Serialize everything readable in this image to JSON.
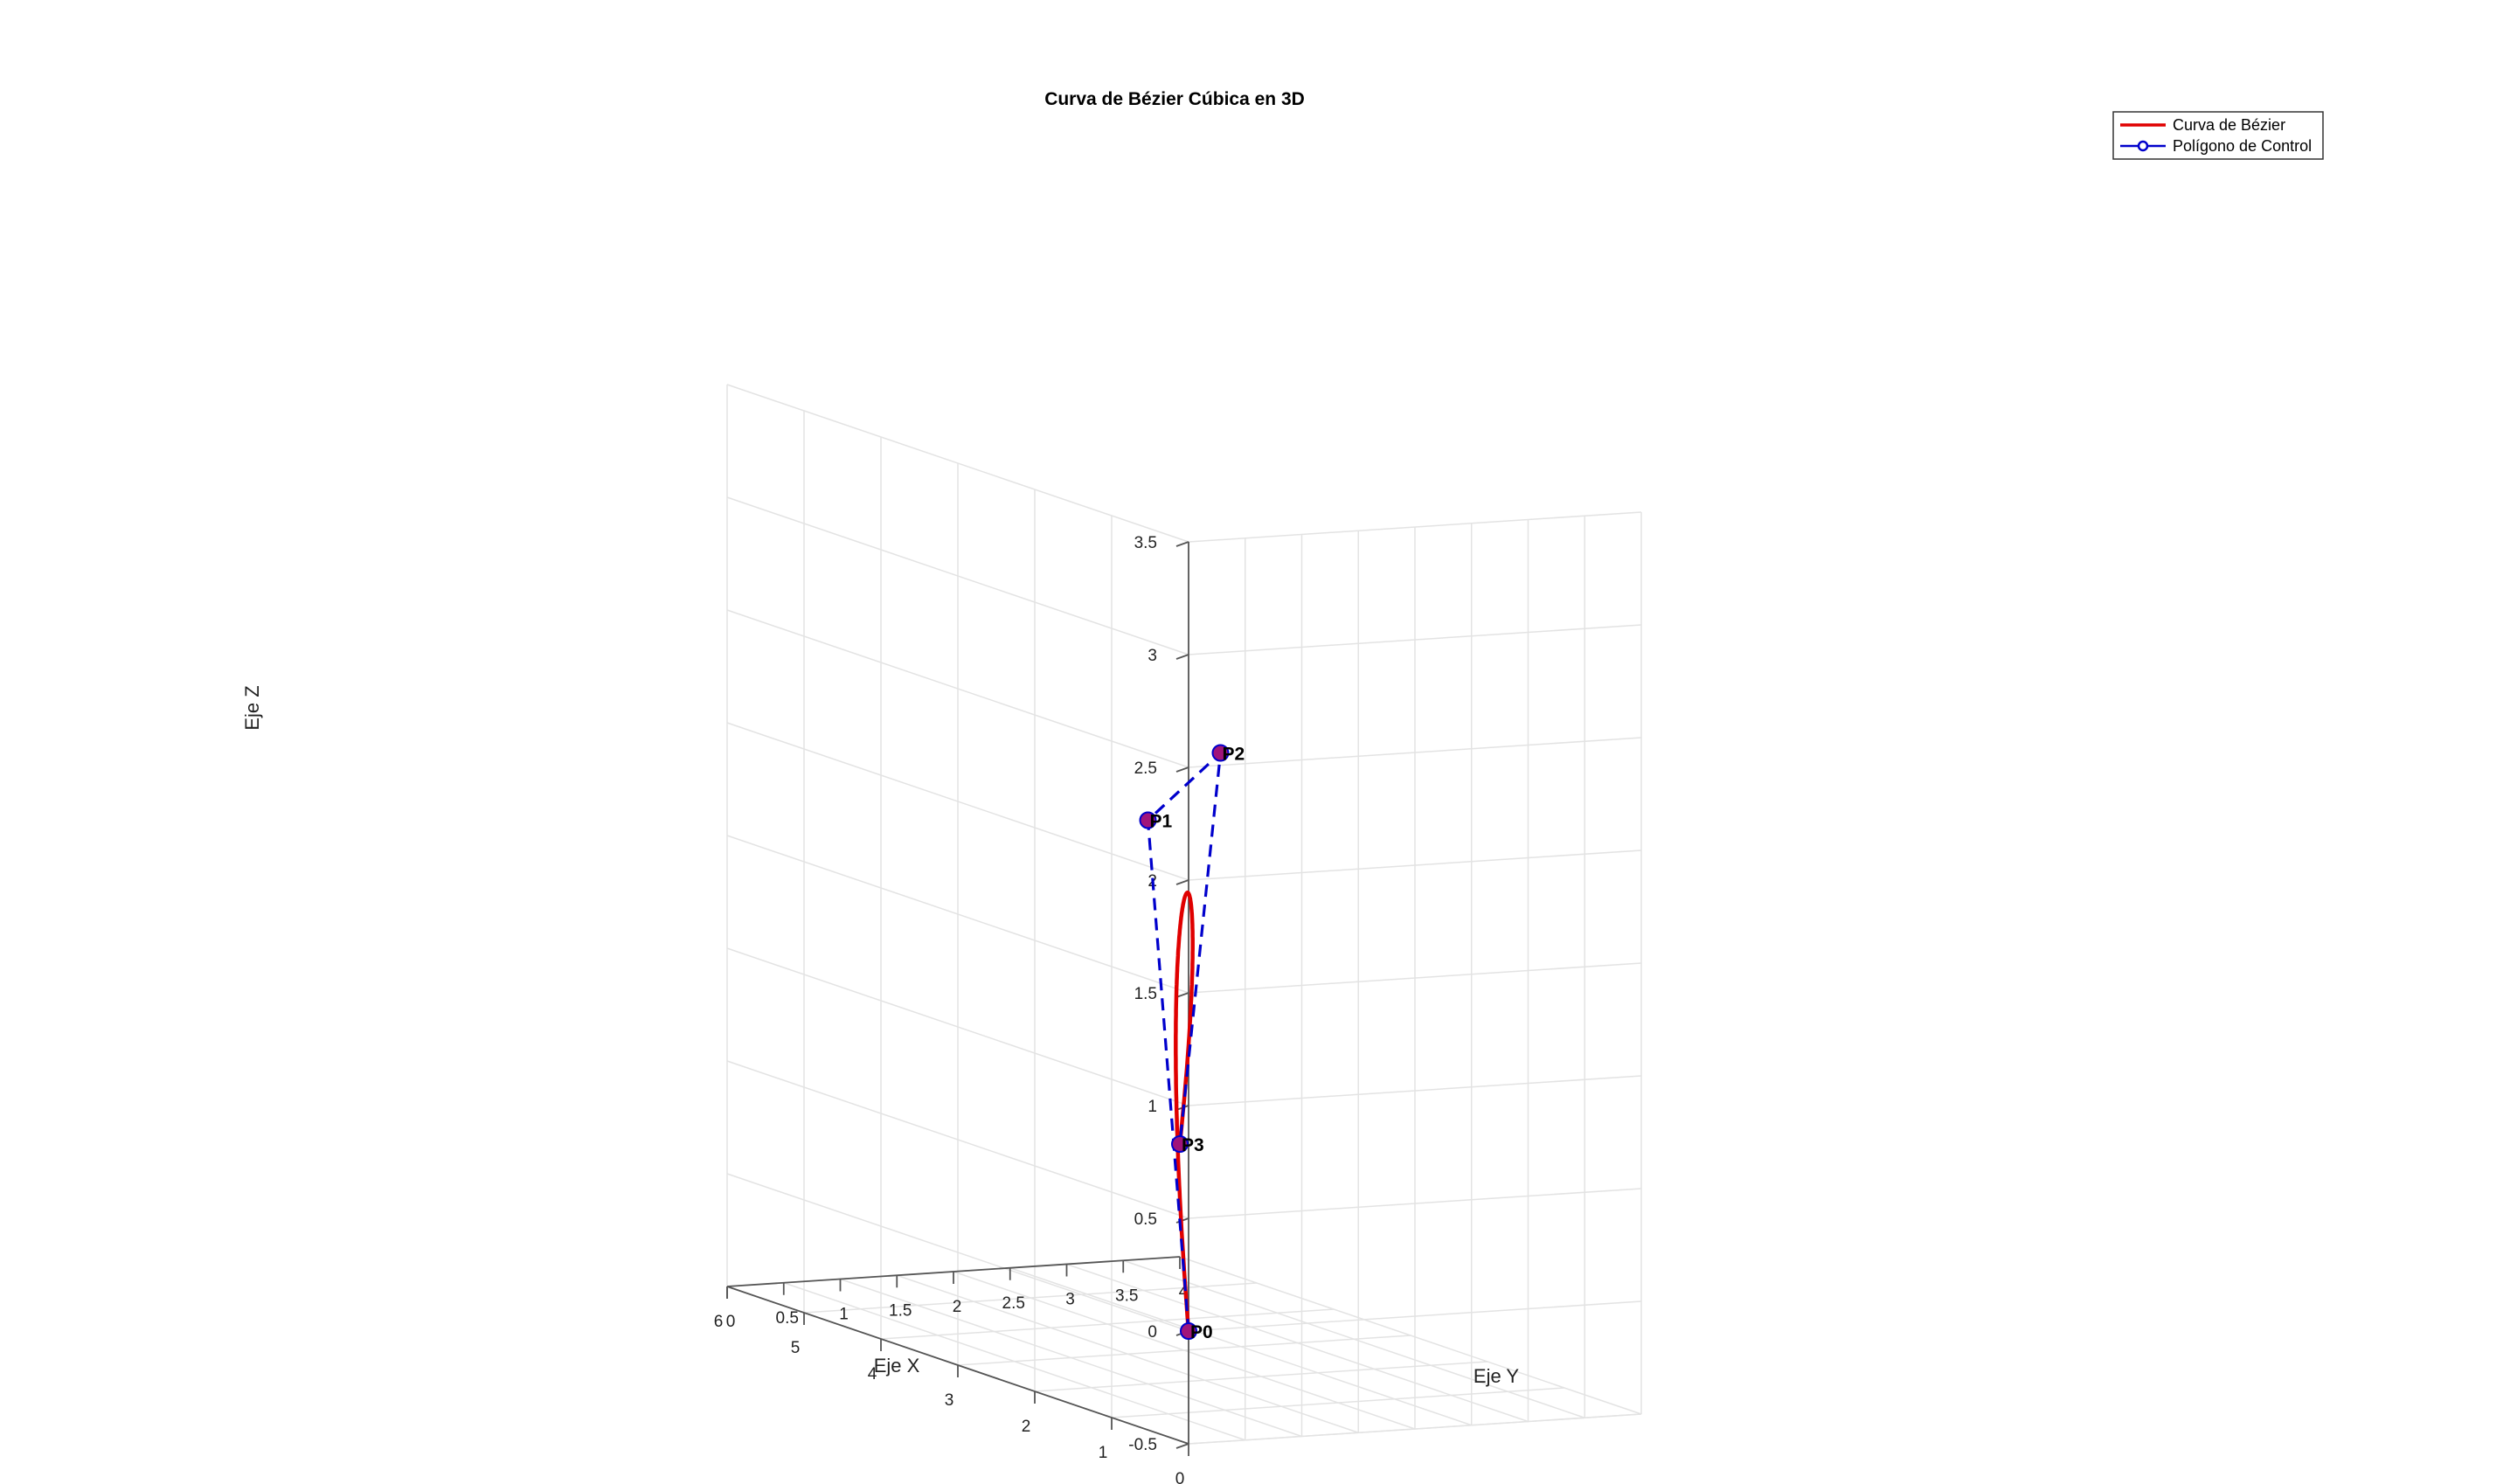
{
  "chart_data": {
    "type": "line",
    "title": "Curva de Bézier Cúbica en 3D",
    "xlabel": "Eje X",
    "ylabel": "Eje Y",
    "zlabel": "Eje Z",
    "xlim": [
      0,
      6
    ],
    "ylim": [
      0,
      4
    ],
    "zlim": [
      -0.5,
      3.5
    ],
    "xticks": [
      "0",
      "1",
      "2",
      "3",
      "4",
      "5",
      "6"
    ],
    "yticks": [
      "0",
      "0.5",
      "1",
      "1.5",
      "2",
      "2.5",
      "3",
      "3.5",
      "4"
    ],
    "zticks": [
      "-0.5",
      "0",
      "0.5",
      "1",
      "1.5",
      "2",
      "2.5",
      "3",
      "3.5"
    ],
    "grid": true,
    "legend_position": "top-right",
    "control_points": [
      {
        "label": "P0",
        "x": 0,
        "y": 0,
        "z": 0
      },
      {
        "label": "P1",
        "x": 2,
        "y": 1,
        "z": 2
      },
      {
        "label": "P2",
        "x": 4,
        "y": 3,
        "z": 2
      },
      {
        "label": "P3",
        "x": 6,
        "y": 4,
        "z": 0
      }
    ],
    "series": [
      {
        "name": "Curva de Bézier",
        "color": "#e00000",
        "style": "solid"
      },
      {
        "name": "Polígono de Control",
        "color": "#0000cc",
        "style": "dashed-markers"
      }
    ],
    "marker_color": "#a0147a"
  }
}
